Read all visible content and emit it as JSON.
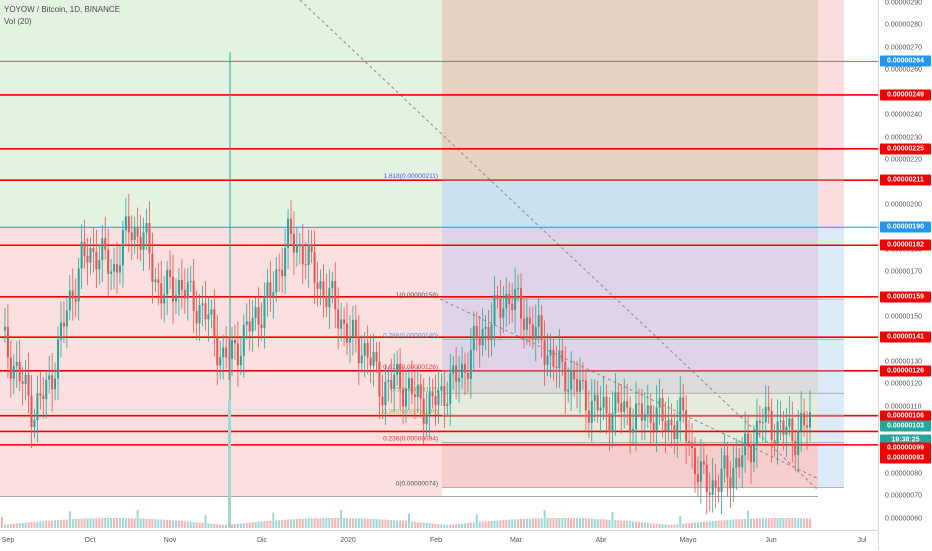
{
  "header": {
    "symbol_line": "YOYOW / Bitcoin, 1D, BINANCE",
    "volume_line": "Vol (20)"
  },
  "colors": {
    "red_line": "#f00000",
    "blue_line": "#2196f3",
    "candle_up": "#26a69a",
    "candle_down": "#ef5350",
    "zone_green": "#e3f2df",
    "zone_red": "#fbdede",
    "zone_brown": "#e6d0bf",
    "zone_blue": "#c5e2ee"
  },
  "price_axis": {
    "ticks": [
      "0.00000290",
      "0.00000280",
      "0.00000270",
      "0.00000260",
      "0.00000250",
      "0.00000240",
      "0.00000230",
      "0.00000220",
      "0.00000210",
      "0.00000200",
      "0.00000190",
      "0.00000180",
      "0.00000170",
      "0.00000160",
      "0.00000150",
      "0.00000140",
      "0.00000130",
      "0.00000120",
      "0.00000110",
      "0.00000100",
      "0.00000090",
      "0.00000080",
      "0.00000070",
      "0.00000060"
    ],
    "tags": [
      {
        "label": "0.00000264",
        "kind": "blue"
      },
      {
        "label": "0.00000249",
        "kind": "red"
      },
      {
        "label": "0.00000225",
        "kind": "red"
      },
      {
        "label": "0.00000211",
        "kind": "red"
      },
      {
        "label": "0.00000190",
        "kind": "blue"
      },
      {
        "label": "0.00000182",
        "kind": "red"
      },
      {
        "label": "0.00000159",
        "kind": "red"
      },
      {
        "label": "0.00000141",
        "kind": "red"
      },
      {
        "label": "0.00000126",
        "kind": "red"
      },
      {
        "label": "0.00000106",
        "kind": "red"
      },
      {
        "label": "0.00000103",
        "kind": "green"
      },
      {
        "label": "19:38:25",
        "kind": "green"
      },
      {
        "label": "0.00000099",
        "kind": "red"
      },
      {
        "label": "0.00000093",
        "kind": "red"
      }
    ]
  },
  "time_axis": {
    "labels": [
      "Sep",
      "Oct",
      "Nov",
      "Dic",
      "2020",
      "Feb",
      "Mar",
      "Abr",
      "Mayo",
      "Jun",
      "Jul"
    ]
  },
  "fib": {
    "levels": [
      {
        "label": "1.618(0.00000211)",
        "price": 211
      },
      {
        "label": "1(0.00000158)",
        "price": 158
      },
      {
        "label": "0.786(0.00000140)",
        "price": 140
      },
      {
        "label": "0.618(0.00000126)",
        "price": 126
      },
      {
        "label": "0.5(0.00000116)",
        "price": 116
      },
      {
        "label": "0.382(0.00000106)",
        "price": 106
      },
      {
        "label": "0.236(0.00000094)",
        "price": 94
      },
      {
        "label": "0(0.00000074)",
        "price": 74
      }
    ]
  },
  "chart_data": {
    "type": "candlestick",
    "title": "YOYOW / Bitcoin, 1D, BINANCE",
    "unit": "BTC x 1e-8",
    "ylim": [
      55,
      293
    ],
    "horizontal_levels_red": [
      249,
      225,
      211,
      182,
      159,
      141,
      126,
      106,
      99,
      93
    ],
    "horizontal_levels_blue": [
      264,
      190
    ],
    "last_price": 103,
    "closes_approx": [
      140,
      125,
      108,
      120,
      150,
      175,
      180,
      170,
      190,
      185,
      160,
      165,
      158,
      150,
      130,
      138,
      150,
      160,
      185,
      180,
      165,
      155,
      140,
      135,
      118,
      122,
      115,
      110,
      118,
      125,
      140,
      150,
      160,
      150,
      140,
      128,
      122,
      112,
      108,
      110,
      105,
      108,
      102,
      105,
      78,
      75,
      82,
      90,
      105,
      100,
      98,
      103
    ]
  }
}
